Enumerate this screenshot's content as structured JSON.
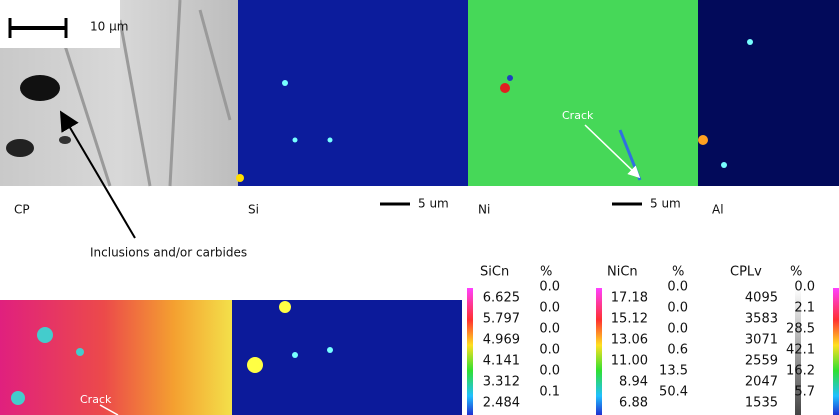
{
  "top_panels": [
    {
      "label": "CP",
      "scale_label": "10 µm"
    },
    {
      "label": "Si",
      "scale_label": "5 um"
    },
    {
      "label": "Ni",
      "scale_label": "5 um",
      "annotation": "Crack"
    },
    {
      "label": "Al"
    }
  ],
  "annotation": "Inclusions and/or carbides",
  "bottom_panels": [
    {
      "annotation": "Crack"
    }
  ],
  "legends": [
    {
      "title": "SiCn",
      "unit": "%",
      "levels": [
        "6.625",
        "5.797",
        "4.969",
        "4.141",
        "3.312",
        "2.484"
      ],
      "percents": [
        "0.0",
        "0.0",
        "0.0",
        "0.0",
        "0.0",
        "0.1"
      ]
    },
    {
      "title": "NiCn",
      "unit": "%",
      "levels": [
        "17.18",
        "15.12",
        "13.06",
        "11.00",
        "8.94",
        "6.88"
      ],
      "percents": [
        "0.0",
        "0.0",
        "0.0",
        "0.6",
        "13.5",
        "50.4"
      ]
    },
    {
      "title": "CPLv",
      "unit": "%",
      "levels": [
        "4095",
        "3583",
        "3071",
        "2559",
        "2047",
        "1535"
      ],
      "percents": [
        "0.0",
        "2.1",
        "28.5",
        "42.1",
        "16.2",
        "5.7"
      ]
    }
  ]
}
